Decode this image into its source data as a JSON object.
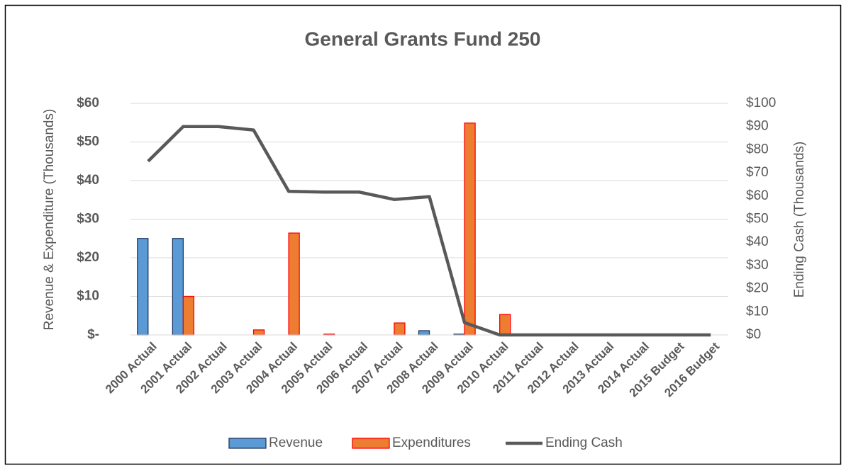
{
  "chart_data": {
    "type": "bar",
    "title": "General Grants Fund 250",
    "y_label": "Revenue & Expenditure (Thousands)",
    "y2_label": "Ending Cash (Thousands)",
    "categories": [
      "2000 Actual",
      "2001 Actual",
      "2002 Actual",
      "2003 Actual",
      "2004 Actual",
      "2005 Actual",
      "2006 Actual",
      "2007 Actual",
      "2008 Actual",
      "2009 Actual",
      "2010 Actual",
      "2011 Actual",
      "2012 Actual",
      "2013 Actual",
      "2014 Actual",
      "2015 Budget",
      "2016 Budget"
    ],
    "series": [
      {
        "name": "Revenue",
        "type": "bar",
        "color": "#5b9bd5",
        "edge_color": "#1f3864",
        "values": [
          25,
          25,
          0,
          0,
          0,
          0,
          0,
          0,
          1.1,
          0.2,
          0,
          0,
          0,
          0,
          0,
          0,
          0
        ]
      },
      {
        "name": "Expenditures",
        "type": "bar",
        "color": "#ed7d31",
        "edge_color": "#ff0000",
        "values": [
          0,
          10,
          0,
          1.3,
          26.4,
          0.2,
          0,
          3.1,
          0,
          54.9,
          5.3,
          0,
          0,
          0,
          0,
          0,
          0
        ]
      },
      {
        "name": "Ending Cash",
        "type": "line",
        "axis": "y2",
        "color": "#595959",
        "values": [
          75,
          90,
          90,
          88.5,
          62,
          61.7,
          61.7,
          58.5,
          59.7,
          5.3,
          0,
          0,
          0,
          0,
          0,
          0,
          0
        ]
      }
    ],
    "ylim": [
      0,
      60
    ],
    "yticks": [
      {
        "value": 0,
        "label": "$-"
      },
      {
        "value": 10,
        "label": "$10"
      },
      {
        "value": 20,
        "label": "$20"
      },
      {
        "value": 30,
        "label": "$30"
      },
      {
        "value": 40,
        "label": "$40"
      },
      {
        "value": 50,
        "label": "$50"
      },
      {
        "value": 60,
        "label": "$60"
      }
    ],
    "y2lim": [
      0,
      100
    ],
    "y2ticks": [
      {
        "value": 0,
        "label": "$0"
      },
      {
        "value": 10,
        "label": "$10"
      },
      {
        "value": 20,
        "label": "$20"
      },
      {
        "value": 30,
        "label": "$30"
      },
      {
        "value": 40,
        "label": "$40"
      },
      {
        "value": 50,
        "label": "$50"
      },
      {
        "value": 60,
        "label": "$60"
      },
      {
        "value": 70,
        "label": "$70"
      },
      {
        "value": 80,
        "label": "$80"
      },
      {
        "value": 90,
        "label": "$90"
      },
      {
        "value": 100,
        "label": "$100"
      }
    ],
    "grid": true,
    "legend": "bottom"
  }
}
